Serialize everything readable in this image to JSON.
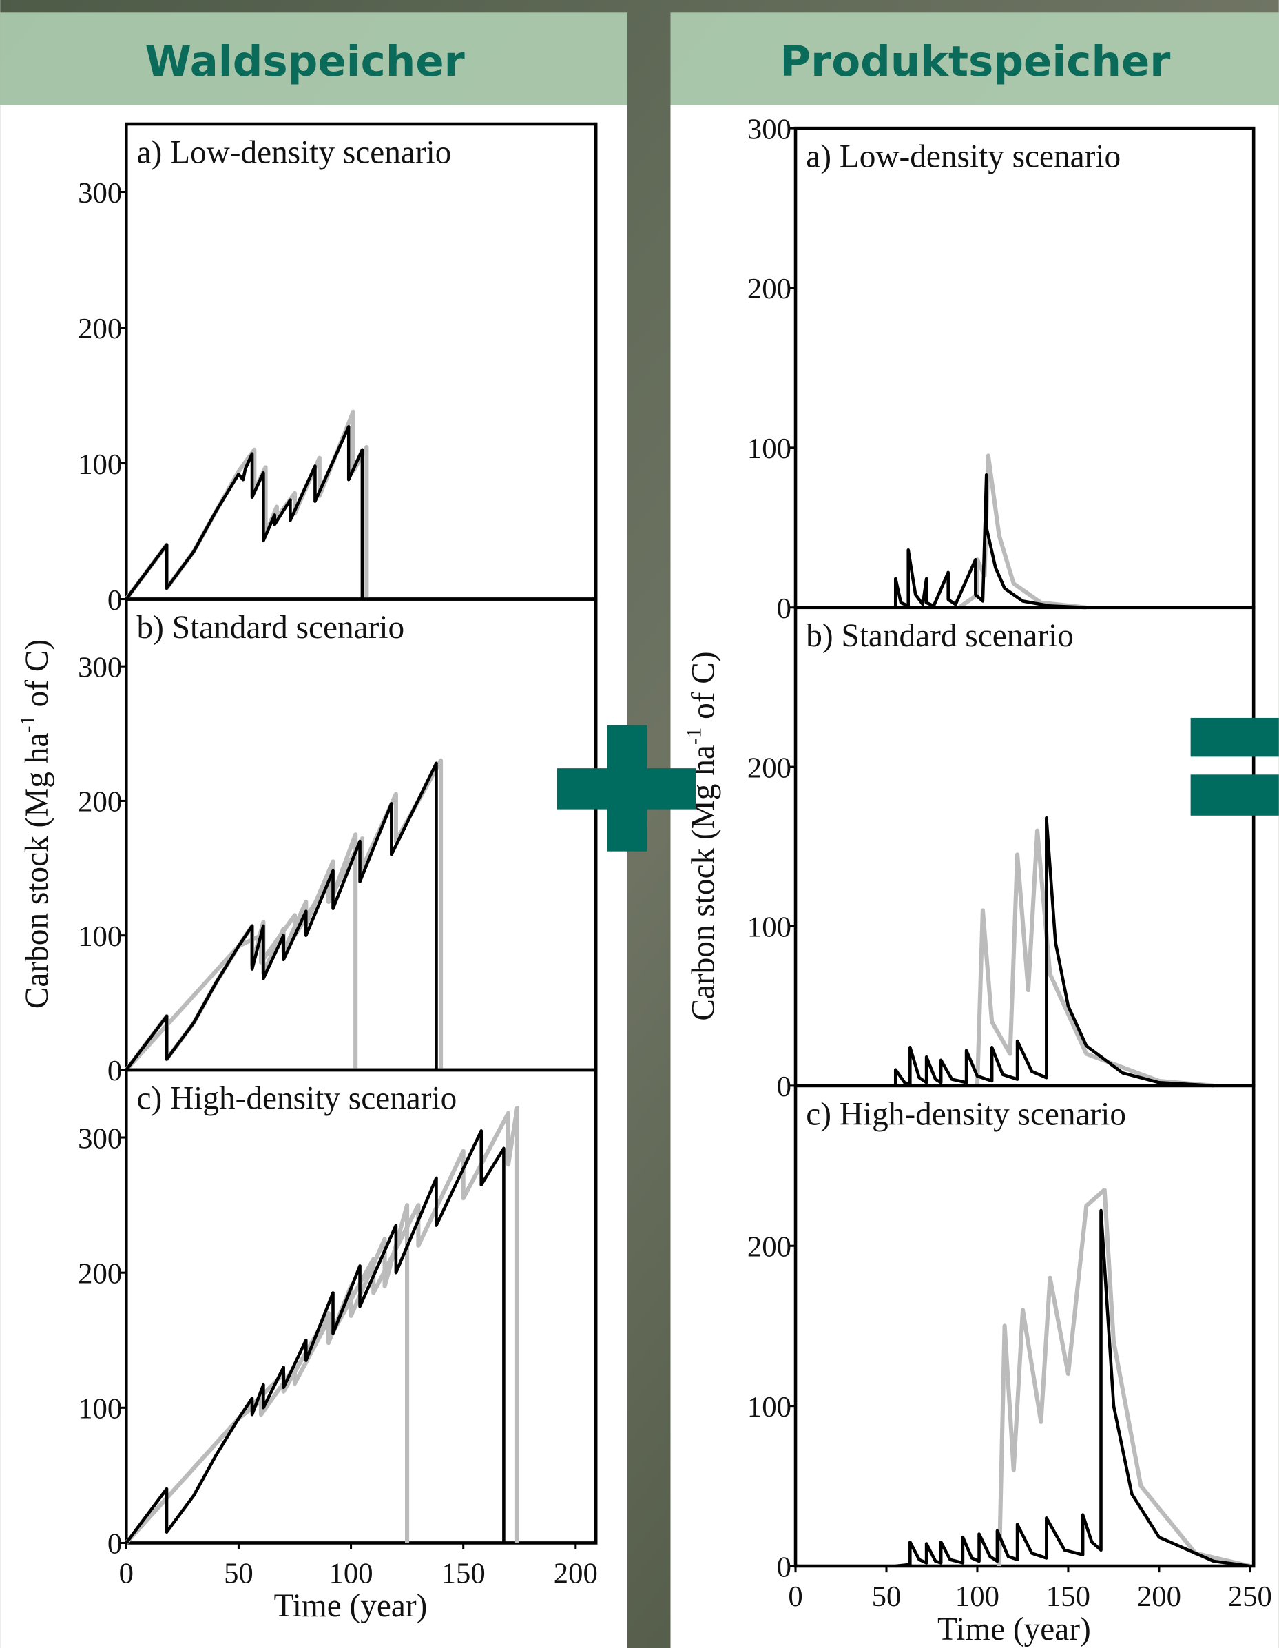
{
  "headers": [
    "Waldspeicher",
    "Produktspeicher"
  ],
  "chart_data": [
    {
      "type": "line",
      "title": "a) Low-density scenario",
      "xlim": [
        0,
        209
      ],
      "ylim": [
        0,
        350
      ],
      "yticks": [
        0,
        100,
        200,
        300
      ],
      "series": [
        {
          "color": "#bbbbbb",
          "x": [
            0,
            18,
            18,
            30,
            40,
            50,
            57,
            57,
            62,
            62,
            67,
            67,
            75,
            75,
            86,
            86,
            101,
            101,
            107,
            107
          ],
          "values": [
            0,
            40,
            8,
            35,
            65,
            94,
            110,
            80,
            97,
            48,
            68,
            60,
            78,
            63,
            104,
            76,
            138,
            94,
            112,
            0
          ]
        },
        {
          "color": "#000000",
          "x": [
            0,
            18,
            18,
            30,
            40,
            50,
            52,
            53,
            56,
            56,
            61,
            61,
            66,
            66,
            73,
            73,
            84,
            84,
            99,
            99,
            105,
            105
          ],
          "values": [
            0,
            40,
            8,
            35,
            65,
            92,
            88,
            96,
            107,
            75,
            93,
            43,
            62,
            55,
            73,
            58,
            98,
            72,
            127,
            88,
            110,
            0
          ]
        }
      ]
    },
    {
      "type": "line",
      "title": "b) Standard scenario",
      "ylabel": [
        "Carbon stock (Mg ha",
        "-1",
        " of C)"
      ],
      "xlim": [
        0,
        209
      ],
      "ylim": [
        0,
        350
      ],
      "yticks": [
        0,
        100,
        200,
        300
      ],
      "series": [
        {
          "color": "#bbbbbb",
          "x": [
            0,
            18,
            18,
            30,
            40,
            50,
            56,
            56,
            61,
            61,
            70,
            70,
            80,
            80,
            92,
            92,
            102,
            102
          ],
          "values": [
            0,
            40,
            8,
            35,
            65,
            92,
            107,
            78,
            110,
            72,
            105,
            88,
            125,
            108,
            155,
            130,
            175,
            0
          ]
        },
        {
          "color": "#bbbbbb",
          "x": [
            0,
            50,
            60,
            60,
            75,
            75,
            90,
            90,
            105,
            105,
            120,
            120,
            140,
            140
          ],
          "values": [
            0,
            92,
            100,
            80,
            115,
            100,
            140,
            125,
            172,
            150,
            205,
            170,
            230,
            0
          ]
        },
        {
          "color": "#000000",
          "x": [
            0,
            18,
            18,
            30,
            40,
            50,
            56,
            56,
            61,
            61,
            70,
            70,
            80,
            80,
            92,
            92,
            104,
            104,
            118,
            118,
            138,
            138
          ],
          "values": [
            0,
            40,
            8,
            35,
            65,
            92,
            107,
            75,
            107,
            68,
            100,
            82,
            118,
            100,
            148,
            120,
            170,
            140,
            198,
            160,
            228,
            0
          ]
        }
      ]
    },
    {
      "type": "line",
      "title": "c) High-density scenario",
      "xlabel": "Time (year)",
      "xlim": [
        0,
        209
      ],
      "ylim": [
        0,
        350
      ],
      "yticks": [
        0,
        100,
        200,
        300
      ],
      "xticks": [
        0,
        50,
        100,
        150,
        200
      ],
      "series": [
        {
          "color": "#bbbbbb",
          "x": [
            0,
            50,
            60,
            60,
            75,
            75,
            90,
            90,
            100,
            100,
            115,
            115,
            125,
            125
          ],
          "values": [
            0,
            92,
            105,
            95,
            130,
            118,
            165,
            148,
            190,
            168,
            225,
            190,
            250,
            0
          ]
        },
        {
          "color": "#bbbbbb",
          "x": [
            0,
            50,
            70,
            70,
            90,
            90,
            110,
            110,
            130,
            130,
            150,
            150,
            170,
            170,
            174,
            174
          ],
          "values": [
            0,
            92,
            125,
            112,
            170,
            150,
            210,
            185,
            250,
            220,
            290,
            255,
            318,
            280,
            322,
            0
          ]
        },
        {
          "color": "#000000",
          "x": [
            0,
            18,
            18,
            30,
            40,
            50,
            56,
            56,
            61,
            61,
            70,
            70,
            80,
            80,
            92,
            92,
            104,
            104,
            120,
            120,
            138,
            138,
            158,
            158,
            168,
            168
          ],
          "values": [
            0,
            40,
            8,
            35,
            65,
            92,
            107,
            95,
            117,
            100,
            130,
            115,
            150,
            135,
            185,
            155,
            205,
            175,
            235,
            200,
            270,
            235,
            305,
            265,
            292,
            0
          ]
        }
      ]
    },
    {
      "type": "line",
      "title": "a) Low-density scenario",
      "xlim": [
        0,
        252
      ],
      "ylim": [
        0,
        300
      ],
      "yticks": [
        0,
        100,
        200,
        300
      ],
      "series": [
        {
          "color": "#bbbbbb",
          "x": [
            90,
            100,
            100,
            104,
            106,
            112,
            120,
            135,
            160
          ],
          "values": [
            0,
            8,
            30,
            20,
            95,
            45,
            15,
            3,
            0
          ]
        },
        {
          "color": "#000000",
          "x": [
            55,
            55,
            58,
            62,
            62,
            66,
            70,
            72,
            72,
            76,
            84,
            84,
            88,
            99,
            99,
            103,
            105,
            105,
            110,
            115,
            125,
            140,
            160
          ],
          "values": [
            0,
            18,
            3,
            1,
            36,
            8,
            2,
            18,
            3,
            1,
            22,
            5,
            2,
            30,
            8,
            4,
            83,
            50,
            25,
            12,
            4,
            1,
            0
          ]
        }
      ]
    },
    {
      "type": "line",
      "title": "b) Standard scenario",
      "ylabel": [
        "Carbon stock (Mg ha",
        "-1",
        " of C)"
      ],
      "xlim": [
        0,
        252
      ],
      "ylim": [
        0,
        300
      ],
      "yticks": [
        0,
        100,
        200
      ],
      "series": [
        {
          "color": "#bbbbbb",
          "x": [
            100,
            103,
            108,
            118,
            122,
            128,
            133,
            140,
            160,
            200,
            230
          ],
          "values": [
            0,
            110,
            40,
            20,
            145,
            60,
            160,
            70,
            20,
            3,
            0
          ]
        },
        {
          "color": "#000000",
          "x": [
            55,
            55,
            60,
            63,
            63,
            68,
            72,
            72,
            77,
            80,
            80,
            86,
            94,
            94,
            100,
            108,
            108,
            114,
            122,
            122,
            130,
            138,
            138,
            143,
            150,
            160,
            180,
            200,
            230
          ],
          "values": [
            0,
            10,
            2,
            1,
            24,
            5,
            2,
            18,
            4,
            2,
            16,
            4,
            2,
            22,
            6,
            3,
            24,
            7,
            4,
            28,
            9,
            5,
            168,
            90,
            50,
            25,
            8,
            2,
            0
          ]
        }
      ]
    },
    {
      "type": "line",
      "title": "c) High-density scenario",
      "xlabel": "Time (year)",
      "xlim": [
        0,
        252
      ],
      "ylim": [
        0,
        300
      ],
      "yticks": [
        0,
        100,
        200
      ],
      "xticks": [
        0,
        50,
        100,
        150,
        200,
        250
      ],
      "series": [
        {
          "color": "#bbbbbb",
          "x": [
            112,
            115,
            120,
            125,
            135,
            140,
            150,
            160,
            170,
            175,
            190,
            220,
            250
          ],
          "values": [
            0,
            150,
            60,
            160,
            90,
            180,
            120,
            225,
            235,
            140,
            50,
            8,
            0
          ]
        },
        {
          "color": "#000000",
          "x": [
            55,
            63,
            63,
            68,
            72,
            72,
            77,
            80,
            80,
            85,
            92,
            92,
            97,
            101,
            101,
            107,
            111,
            111,
            117,
            122,
            122,
            130,
            138,
            138,
            148,
            158,
            158,
            163,
            168,
            168,
            175,
            185,
            200,
            230,
            250
          ],
          "values": [
            0,
            1,
            15,
            4,
            2,
            14,
            3,
            2,
            15,
            4,
            2,
            18,
            5,
            3,
            20,
            6,
            3,
            22,
            6,
            4,
            26,
            8,
            5,
            30,
            10,
            7,
            32,
            15,
            10,
            222,
            100,
            45,
            18,
            3,
            0
          ]
        }
      ]
    }
  ]
}
